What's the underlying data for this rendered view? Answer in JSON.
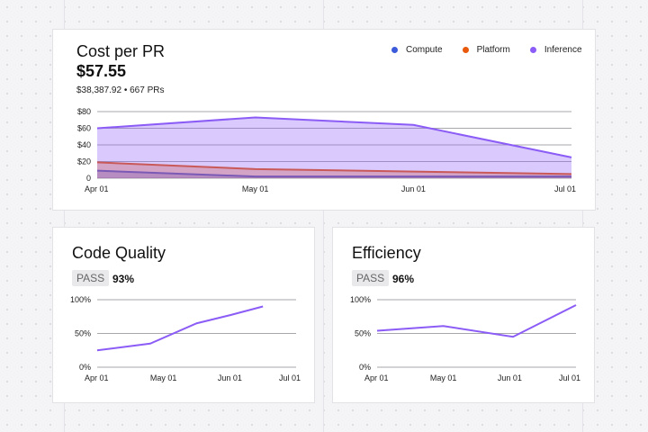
{
  "cost": {
    "title": "Cost per PR",
    "value": "$57.55",
    "subtitle": "$38,387.92 • 667 PRs",
    "legend": [
      {
        "label": "Compute",
        "color": "#3b5bdb"
      },
      {
        "label": "Platform",
        "color": "#e8590c"
      },
      {
        "label": "Inference",
        "color": "#8b5cf6"
      }
    ]
  },
  "quality": {
    "title": "Code Quality",
    "badge": "PASS",
    "pct": "93%"
  },
  "efficiency": {
    "title": "Efficiency",
    "badge": "PASS",
    "pct": "96%"
  },
  "chart_data": [
    {
      "type": "area",
      "title": "Cost per PR",
      "x": [
        "Apr 01",
        "May 01",
        "Jun 01",
        "Jul 01"
      ],
      "y_ticks": [
        "0",
        "$20",
        "$40",
        "$60",
        "$80"
      ],
      "ylim": [
        0,
        80
      ],
      "grid": true,
      "legend_position": "top-right",
      "series": [
        {
          "name": "Compute",
          "color": "#3b5bdb",
          "points": [
            [
              0,
              9
            ],
            [
              1,
              2
            ],
            [
              2,
              2
            ],
            [
              3,
              2
            ]
          ]
        },
        {
          "name": "Platform",
          "color": "#e8590c",
          "points": [
            [
              0,
              19
            ],
            [
              1,
              11
            ],
            [
              2,
              8
            ],
            [
              3,
              5
            ]
          ]
        },
        {
          "name": "Inference",
          "color": "#8b5cf6",
          "points": [
            [
              0,
              60
            ],
            [
              1,
              73
            ],
            [
              2,
              64
            ],
            [
              3,
              25
            ]
          ]
        }
      ]
    },
    {
      "type": "line",
      "title": "Code Quality",
      "x": [
        "Apr 01",
        "May 01",
        "Jun 01",
        "Jul 01"
      ],
      "y_ticks": [
        "0%",
        "50%",
        "100%"
      ],
      "ylim": [
        0,
        100
      ],
      "grid": true,
      "series": [
        {
          "color": "#8b5cf6",
          "points": [
            [
              0,
              25
            ],
            [
              0.8,
              35
            ],
            [
              1.5,
              65
            ],
            [
              2.0,
              77
            ],
            [
              2.5,
              90
            ]
          ]
        }
      ]
    },
    {
      "type": "line",
      "title": "Efficiency",
      "x": [
        "Apr 01",
        "May 01",
        "Jun 01",
        "Jul 01"
      ],
      "y_ticks": [
        "0%",
        "50%",
        "100%"
      ],
      "ylim": [
        0,
        100
      ],
      "grid": true,
      "series": [
        {
          "color": "#8b5cf6",
          "points": [
            [
              0,
              54
            ],
            [
              1.0,
              61
            ],
            [
              2.05,
              45
            ],
            [
              3.0,
              92
            ]
          ]
        }
      ]
    }
  ]
}
